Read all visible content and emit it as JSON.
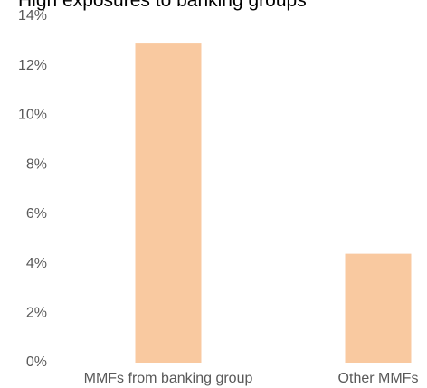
{
  "chart_data": {
    "type": "bar",
    "title": "High exposures to banking groups",
    "categories": [
      "MMFs from banking group",
      "Other MMFs"
    ],
    "values": [
      12.9,
      4.4
    ],
    "color": "#f9c9a0",
    "ylim": [
      0,
      14
    ],
    "yticks": [
      {
        "value": 0,
        "label": "0%"
      },
      {
        "value": 2,
        "label": "2%"
      },
      {
        "value": 4,
        "label": "4%"
      },
      {
        "value": 6,
        "label": "6%"
      },
      {
        "value": 8,
        "label": "8%"
      },
      {
        "value": 10,
        "label": "10%"
      },
      {
        "value": 12,
        "label": "12%"
      },
      {
        "value": 14,
        "label": "14%"
      }
    ],
    "grid": false
  }
}
